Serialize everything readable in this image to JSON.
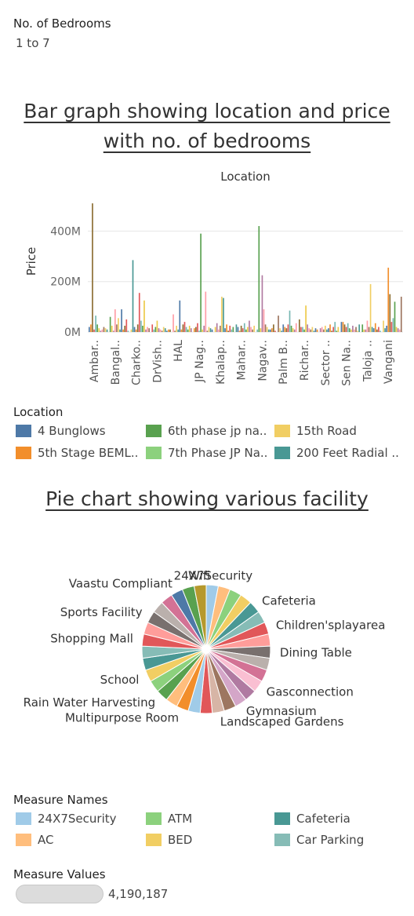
{
  "filter": {
    "title": "No. of Bedrooms",
    "value": "1 to 7"
  },
  "bar_title": "Bar graph showing location and price with no. of bedrooms",
  "pie_title": "Pie chart showing various facility",
  "location_legend": {
    "title": "Location",
    "items": [
      {
        "label": "4 Bunglows",
        "color": "#4e79a7"
      },
      {
        "label": "6th phase jp na..",
        "color": "#59a14f"
      },
      {
        "label": "15th Road",
        "color": "#f1ce63"
      },
      {
        "label": "5th Stage BEML..",
        "color": "#f28e2b"
      },
      {
        "label": "7th Phase JP Na..",
        "color": "#8cd17d"
      },
      {
        "label": "200 Feet Radial ..",
        "color": "#499894"
      }
    ]
  },
  "measure_names_legend": {
    "title": "Measure Names",
    "items": [
      {
        "label": "24X7Security",
        "color": "#a0cbe8"
      },
      {
        "label": "ATM",
        "color": "#8cd17d"
      },
      {
        "label": "Cafeteria",
        "color": "#499894"
      },
      {
        "label": "AC",
        "color": "#ffbe7d"
      },
      {
        "label": "BED",
        "color": "#f1ce63"
      },
      {
        "label": "Car Parking",
        "color": "#86bcb6"
      }
    ]
  },
  "measure_values": {
    "title": "Measure Values",
    "value": "4,190,187"
  },
  "chart_data": [
    {
      "type": "bar",
      "title": "Bar graph showing location and price with no. of bedrooms",
      "xlabel": "Location",
      "ylabel": "Price",
      "ylim": [
        0,
        560000000
      ],
      "yticks": [
        {
          "value": 0,
          "label": "0M"
        },
        {
          "value": 200000000,
          "label": "200M"
        },
        {
          "value": 400000000,
          "label": "400M"
        }
      ],
      "grid": true,
      "categories": [
        "Ambar..",
        "Bangal..",
        "Charko..",
        "DrVish..",
        "HAL",
        "JP Nag..",
        "Khalap..",
        "Mahar..",
        "Nagav..",
        "Palm B..",
        "Richar..",
        "Sector ..",
        "Sen Na..",
        "Taloja ..",
        "Vangani"
      ],
      "values": [
        [
          20,
          30,
          510,
          10,
          65,
          30,
          15,
          5,
          10,
          20,
          15,
          10
        ],
        [
          60,
          25,
          5,
          90,
          30,
          55,
          10,
          90,
          10,
          25,
          50,
          5
        ],
        [
          10,
          285,
          20,
          10,
          30,
          155,
          45,
          25,
          125,
          10,
          20,
          15
        ],
        [
          30,
          10,
          20,
          45,
          15,
          10,
          5,
          20,
          15,
          5,
          10,
          10
        ],
        [
          70,
          5,
          25,
          10,
          125,
          10,
          30,
          40,
          20,
          10,
          25,
          15
        ],
        [
          15,
          20,
          35,
          5,
          390,
          10,
          25,
          160,
          5,
          20,
          15,
          10
        ],
        [
          20,
          35,
          10,
          25,
          140,
          135,
          15,
          30,
          5,
          25,
          10,
          20
        ],
        [
          30,
          20,
          5,
          25,
          15,
          35,
          10,
          20,
          45,
          20,
          10,
          25
        ],
        [
          10,
          420,
          15,
          225,
          90,
          30,
          20,
          10,
          10,
          15,
          30,
          5
        ],
        [
          65,
          15,
          5,
          30,
          20,
          15,
          30,
          85,
          25,
          15,
          10,
          35
        ],
        [
          50,
          20,
          20,
          10,
          105,
          30,
          15,
          10,
          20,
          5,
          15,
          10
        ],
        [
          15,
          20,
          10,
          25,
          10,
          15,
          30,
          5,
          20,
          40,
          5,
          20
        ],
        [
          40,
          40,
          30,
          20,
          35,
          15,
          10,
          25,
          10,
          20,
          5,
          30
        ],
        [
          30,
          10,
          10,
          45,
          20,
          190,
          20,
          15,
          35,
          10,
          20,
          5
        ],
        [
          45,
          15,
          25,
          255,
          150,
          40,
          55,
          120,
          20,
          15,
          10,
          140
        ]
      ]
    },
    {
      "type": "pie",
      "title": "Pie chart showing various facility",
      "slices": [
        {
          "label": "24X7Security",
          "value": 1,
          "color": "#a0cbe8"
        },
        {
          "label": "",
          "value": 1,
          "color": "#ffbe7d"
        },
        {
          "label": "",
          "value": 1,
          "color": "#8cd17d"
        },
        {
          "label": "",
          "value": 1,
          "color": "#f1ce63"
        },
        {
          "label": "Cafeteria",
          "value": 1,
          "color": "#499894"
        },
        {
          "label": "",
          "value": 1,
          "color": "#86bcb6"
        },
        {
          "label": "Children'splayarea",
          "value": 1,
          "color": "#e15759"
        },
        {
          "label": "",
          "value": 1,
          "color": "#ff9d9a"
        },
        {
          "label": "Dining Table",
          "value": 1,
          "color": "#79706e"
        },
        {
          "label": "",
          "value": 1,
          "color": "#bab0ac"
        },
        {
          "label": "",
          "value": 1,
          "color": "#d37295"
        },
        {
          "label": "Gasconnection",
          "value": 1,
          "color": "#fabfd2"
        },
        {
          "label": "",
          "value": 1,
          "color": "#b07aa1"
        },
        {
          "label": "Gymnasium",
          "value": 1,
          "color": "#d4a6c8"
        },
        {
          "label": "",
          "value": 1,
          "color": "#9d7660"
        },
        {
          "label": "Landscaped Gardens",
          "value": 1,
          "color": "#d7b5a6"
        },
        {
          "label": "",
          "value": 1,
          "color": "#e15759"
        },
        {
          "label": "",
          "value": 1,
          "color": "#a0cbe8"
        },
        {
          "label": "Multipurpose Room",
          "value": 1,
          "color": "#f28e2b"
        },
        {
          "label": "",
          "value": 1,
          "color": "#ffbe7d"
        },
        {
          "label": "Rain Water Harvesting",
          "value": 1,
          "color": "#59a14f"
        },
        {
          "label": "",
          "value": 1,
          "color": "#8cd17d"
        },
        {
          "label": "School",
          "value": 1,
          "color": "#f1ce63"
        },
        {
          "label": "",
          "value": 1,
          "color": "#499894"
        },
        {
          "label": "",
          "value": 1,
          "color": "#86bcb6"
        },
        {
          "label": "Shopping Mall",
          "value": 1,
          "color": "#e15759"
        },
        {
          "label": "",
          "value": 1,
          "color": "#ff9d9a"
        },
        {
          "label": "Sports Facility",
          "value": 1,
          "color": "#79706e"
        },
        {
          "label": "",
          "value": 1,
          "color": "#bab0ac"
        },
        {
          "label": "",
          "value": 1,
          "color": "#d37295"
        },
        {
          "label": "Vaastu Compliant",
          "value": 1,
          "color": "#4e79a7"
        },
        {
          "label": "",
          "value": 1,
          "color": "#59a14f"
        },
        {
          "label": "Wifi",
          "value": 1,
          "color": "#b6992d"
        }
      ]
    }
  ]
}
